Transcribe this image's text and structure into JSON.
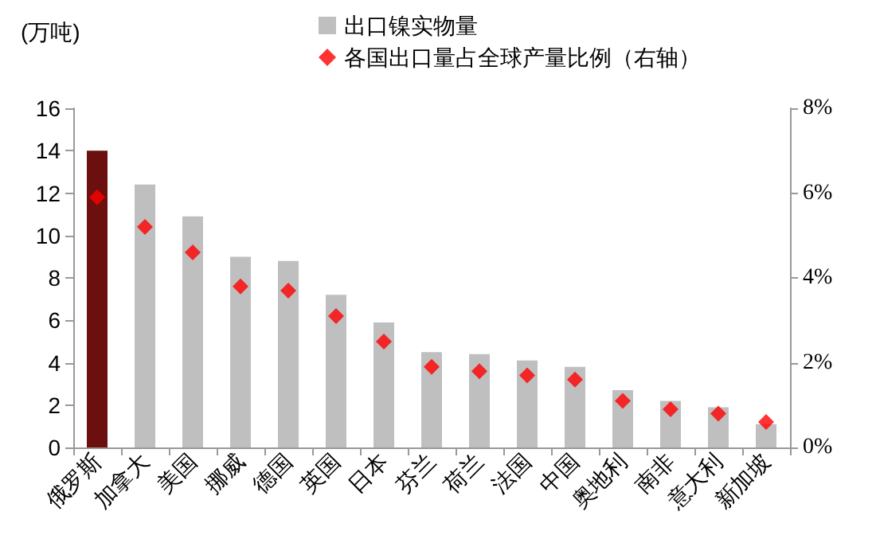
{
  "chart_data": {
    "type": "bar",
    "ylabel": "(万吨)",
    "categories": [
      "俄罗斯",
      "加拿大",
      "美国",
      "挪威",
      "德国",
      "英国",
      "日本",
      "芬兰",
      "荷兰",
      "法国",
      "中国",
      "奥地利",
      "南非",
      "意大利",
      "新加坡"
    ],
    "series": [
      {
        "name": "出口镍实物量",
        "color": "#bfbfbf",
        "colors": [
          "#6b0f0f",
          "#bfbfbf",
          "#bfbfbf",
          "#bfbfbf",
          "#bfbfbf",
          "#bfbfbf",
          "#bfbfbf",
          "#bfbfbf",
          "#bfbfbf",
          "#bfbfbf",
          "#bfbfbf",
          "#bfbfbf",
          "#bfbfbf",
          "#bfbfbf",
          "#bfbfbf"
        ],
        "values": [
          14,
          12.4,
          10.9,
          9.0,
          8.8,
          7.2,
          5.9,
          4.5,
          4.4,
          4.1,
          3.8,
          2.7,
          2.2,
          1.9,
          1.1
        ]
      },
      {
        "name": "各国出口量占全球产量比例（右轴）",
        "type": "scatter",
        "axis": "y2",
        "color": "#ff0000",
        "values": [
          5.9,
          5.2,
          4.6,
          3.8,
          3.7,
          3.1,
          2.5,
          1.9,
          1.8,
          1.7,
          1.6,
          1.1,
          0.9,
          0.8,
          0.6
        ]
      }
    ],
    "ylim": [
      0,
      16
    ],
    "yticks": [
      0,
      2,
      4,
      6,
      8,
      10,
      12,
      14,
      16
    ],
    "y2lim": [
      0,
      8
    ],
    "y2ticks": [
      {
        "value": 0,
        "label": "0%"
      },
      {
        "value": 2,
        "label": "2%"
      },
      {
        "value": 4,
        "label": "4%"
      },
      {
        "value": 6,
        "label": "6%"
      },
      {
        "value": 8,
        "label": "8%"
      }
    ],
    "marker": "diamond",
    "legend": "top",
    "grid": false
  }
}
